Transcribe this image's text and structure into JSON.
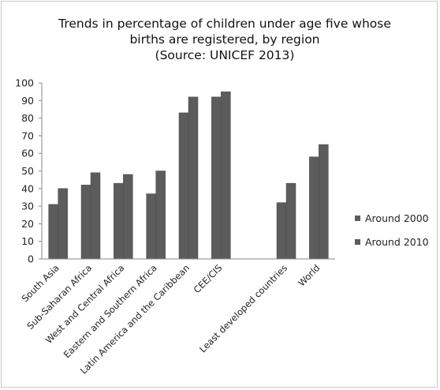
{
  "chart_data": {
    "type": "bar",
    "title_lines": [
      "Trends in percentage of children under age five whose",
      "births are registered, by region",
      "(Source: UNICEF 2013)"
    ],
    "categories": [
      "South Asia",
      "Sub-Saharan Africa",
      "West and Central Africa",
      "Eastern and Southern Africa",
      "Latin America and the Caribbean",
      "CEE/CIS",
      "",
      "Least developed countries",
      "World"
    ],
    "series": [
      {
        "name": "Around 2000",
        "values": [
          31,
          42,
          43,
          37,
          83,
          92,
          null,
          32,
          58
        ]
      },
      {
        "name": "Around 2010",
        "values": [
          40,
          49,
          48,
          50,
          92,
          95,
          null,
          43,
          65
        ]
      }
    ],
    "ylim": [
      0,
      100
    ],
    "yticks": [
      0,
      10,
      20,
      30,
      40,
      50,
      60,
      70,
      80,
      90,
      100
    ],
    "grid": false,
    "legend_position": "right",
    "colors": [
      "#5c5c5c",
      "#5c5c5c"
    ]
  }
}
